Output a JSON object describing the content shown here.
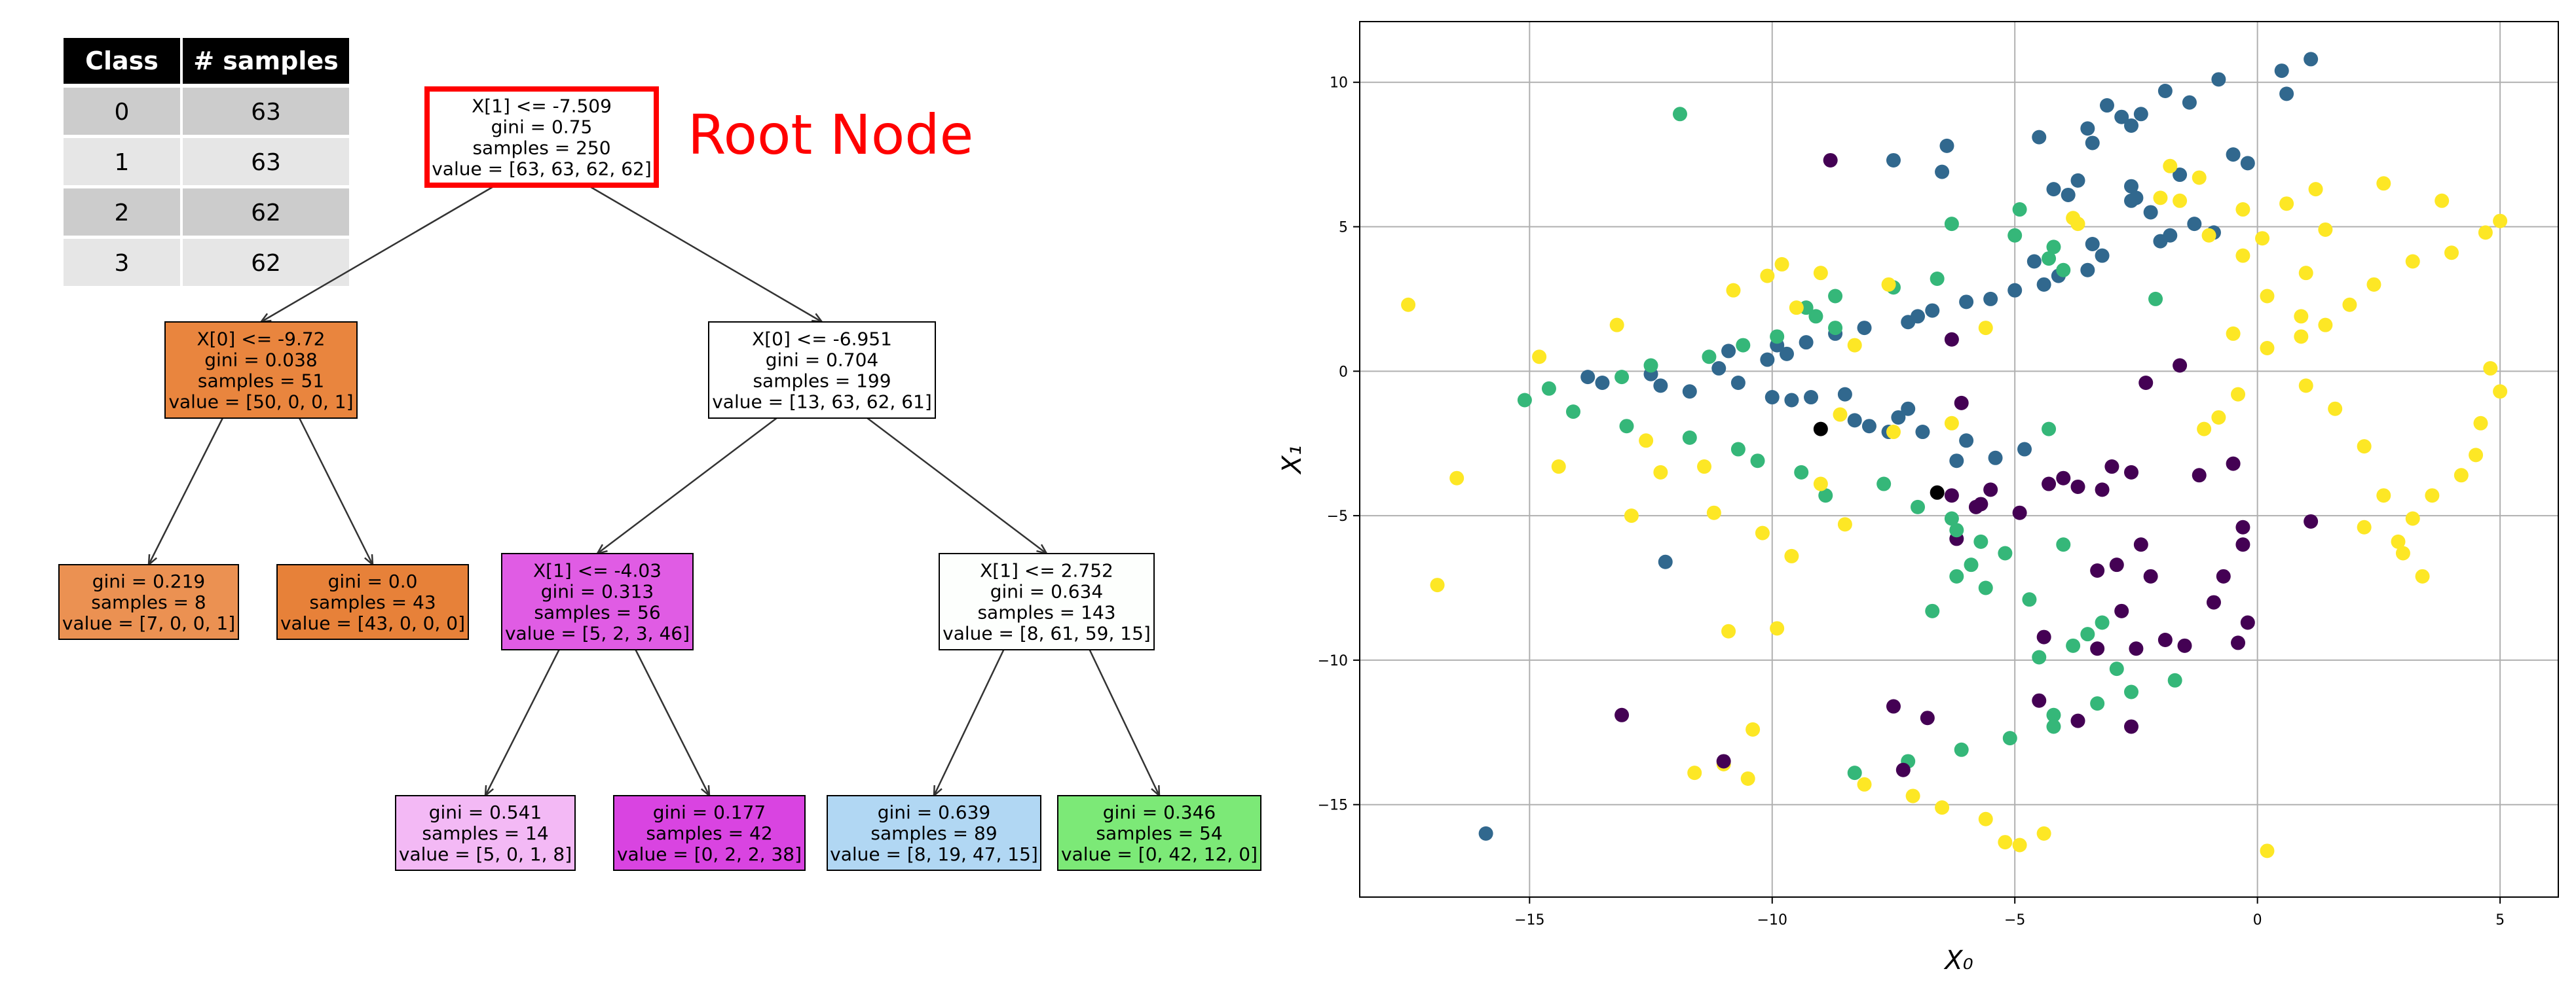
{
  "class_table": {
    "headers": [
      "Class",
      "# samples"
    ],
    "rows": [
      [
        "0",
        "63"
      ],
      [
        "1",
        "63"
      ],
      [
        "2",
        "62"
      ],
      [
        "3",
        "62"
      ]
    ]
  },
  "root_node_label": "Root Node",
  "tree": {
    "colors": {
      "root": "#ffffff",
      "n1": "#e9853e",
      "n3": "#eb9152",
      "n4": "#e78139",
      "n2": "#ffffff",
      "n5": "#e05ce4",
      "n8": "#f3b9f5",
      "n9": "#d944e1",
      "n6": "#fdfffd",
      "n10": "#b1d7f3",
      "n11": "#7ce977"
    },
    "highlight_color": "#ff0000",
    "nodes": [
      {
        "id": "root",
        "lines": [
          "X[1] <= -7.509",
          "gini = 0.75",
          "samples = 250",
          "value = [63, 63, 62, 62]"
        ]
      },
      {
        "id": "n1",
        "lines": [
          "X[0] <= -9.72",
          "gini = 0.038",
          "samples = 51",
          "value = [50, 0, 0, 1]"
        ]
      },
      {
        "id": "n2",
        "lines": [
          "X[0] <= -6.951",
          "gini = 0.704",
          "samples = 199",
          "value = [13, 63, 62, 61]"
        ]
      },
      {
        "id": "n3",
        "lines": [
          "gini = 0.219",
          "samples = 8",
          "value = [7, 0, 0, 1]"
        ]
      },
      {
        "id": "n4",
        "lines": [
          "gini = 0.0",
          "samples = 43",
          "value = [43, 0, 0, 0]"
        ]
      },
      {
        "id": "n5",
        "lines": [
          "X[1] <= -4.03",
          "gini = 0.313",
          "samples = 56",
          "value = [5, 2, 3, 46]"
        ]
      },
      {
        "id": "n6",
        "lines": [
          "X[1] <= 2.752",
          "gini = 0.634",
          "samples = 143",
          "value = [8, 61, 59, 15]"
        ]
      },
      {
        "id": "n8",
        "lines": [
          "gini = 0.541",
          "samples = 14",
          "value = [5, 0, 1, 8]"
        ]
      },
      {
        "id": "n9",
        "lines": [
          "gini = 0.177",
          "samples = 42",
          "value = [0, 2, 2, 38]"
        ]
      },
      {
        "id": "n10",
        "lines": [
          "gini = 0.639",
          "samples = 89",
          "value = [8, 19, 47, 15]"
        ]
      },
      {
        "id": "n11",
        "lines": [
          "gini = 0.346",
          "samples = 54",
          "value = [0, 42, 12, 0]"
        ]
      }
    ],
    "edges": [
      [
        "root",
        "n1"
      ],
      [
        "root",
        "n2"
      ],
      [
        "n1",
        "n3"
      ],
      [
        "n1",
        "n4"
      ],
      [
        "n2",
        "n5"
      ],
      [
        "n2",
        "n6"
      ],
      [
        "n5",
        "n8"
      ],
      [
        "n5",
        "n9"
      ],
      [
        "n6",
        "n10"
      ],
      [
        "n6",
        "n11"
      ]
    ]
  },
  "chart_data": {
    "type": "scatter",
    "xlabel": "X₀",
    "ylabel": "X₁",
    "xlim": [
      -18.5,
      6.2
    ],
    "ylim": [
      -18.2,
      12.1
    ],
    "xticks": [
      -15,
      -10,
      -5,
      0,
      5
    ],
    "yticks": [
      -15,
      -10,
      -5,
      0,
      5,
      10
    ],
    "grid": true,
    "class_colors": {
      "0": "#440154",
      "1": "#31688e",
      "2": "#35b779",
      "3": "#fde725"
    },
    "points": {
      "x": [
        -6.8,
        -7.5,
        -4.5,
        -3.7,
        -2.6,
        -4.4,
        -2.5,
        -3.3,
        -1.5,
        -1.9,
        -0.4,
        -0.9,
        -0.2,
        -2.8,
        -2.2,
        -0.7,
        -3.3,
        -2.9,
        -2.4,
        -0.3,
        -6.2,
        -0.3,
        1.1,
        -4.9,
        -5.8,
        -5.7,
        -6.3,
        -5.5,
        -3.2,
        -4.3,
        -4.0,
        -3.7,
        -3.0,
        -2.6,
        -1.2,
        -0.5,
        -6.2,
        -5.4,
        -4.8,
        -6.0,
        -6.9,
        -7.6,
        -8.0,
        -8.3,
        -7.4,
        -7.2,
        -9.6,
        -10.0,
        -9.2,
        -8.5,
        -11.7,
        -12.3,
        -10.7,
        -13.5,
        -13.8,
        -12.5,
        -11.1,
        -10.1,
        -9.7,
        -10.9,
        -9.9,
        -9.3,
        -8.7,
        -8.1,
        -7.2,
        -7.0,
        -6.7,
        -6.0,
        -5.5,
        -5.0,
        -4.4,
        -4.1,
        -3.5,
        -4.6,
        -3.2,
        -3.4,
        -2.0,
        -1.8,
        -0.9,
        -1.3,
        -2.2,
        -2.6,
        -3.9,
        -4.2,
        -3.7,
        -6.5,
        -7.5,
        -6.4,
        -4.5,
        -3.5,
        -2.8,
        -3.1,
        -1.9,
        -0.8,
        0.5,
        1.1,
        0.6,
        -1.4,
        -2.4,
        -2.6,
        -3.4,
        -0.5,
        -0.2,
        -1.6,
        -2.6,
        -2.5,
        -4.9,
        -6.3,
        -5.0,
        -4.2,
        -4.3,
        -4.0,
        -6.6,
        -7.5,
        -8.7,
        -9.3,
        -9.1,
        -8.7,
        -9.9,
        -10.6,
        -11.3,
        -12.5,
        -13.1,
        -14.6,
        -15.1,
        -14.1,
        -13.0,
        -11.7,
        -10.7,
        -10.3,
        -9.4,
        -7.7,
        -8.9,
        -7.0,
        -6.3,
        -6.2,
        -5.7,
        -5.2,
        -5.9,
        -6.2,
        -5.6,
        -4.7,
        -6.7,
        -3.2,
        -3.5,
        -3.8,
        -4.5,
        -2.9,
        -1.7,
        -2.6,
        -3.3,
        -4.2,
        -4.2,
        -5.1,
        -6.1,
        -7.2,
        -8.3,
        -8.1,
        -7.1,
        -6.5,
        -5.6,
        -4.4,
        -5.2,
        -12.6,
        -11.4,
        -10.2,
        -9.6,
        -10.9,
        -9.9,
        -10.4,
        -11.0,
        -11.6,
        -10.5,
        -11.2,
        -9.0,
        -8.5,
        -13.2,
        -14.8,
        -14.4,
        -17.5,
        -16.5,
        -12.3,
        -12.9,
        -8.3,
        -8.6,
        -6.3,
        -5.6,
        -9.0,
        -9.8,
        -10.8,
        -10.1,
        -9.5,
        -7.6,
        -3.7,
        -3.8,
        -2.0,
        -1.2,
        -1.8,
        -1.6,
        -1.0,
        -0.3,
        1.4,
        1.0,
        0.2,
        0.9,
        -0.5,
        -0.4,
        -0.8,
        -1.1,
        1.0,
        1.6,
        2.2,
        2.6,
        2.2,
        2.9,
        3.0,
        3.4,
        3.2,
        3.6,
        4.2,
        4.5,
        4.6,
        5.0,
        4.8,
        0.2,
        0.9,
        1.4,
        1.9,
        2.4,
        3.2,
        4.0,
        4.7,
        5.0,
        3.8,
        2.6,
        1.2,
        0.6,
        0.1,
        -0.3,
        -1.6,
        -2.3,
        -6.1,
        -7.3,
        -13.1,
        -11.0,
        -12.2,
        -15.9,
        -4.9,
        -8.8,
        -11.9,
        -16.9,
        0.2,
        -4.0,
        -2.1,
        -6.3,
        -4.3,
        -7.5,
        -6.6,
        -9.0
      ],
      "y": [
        -12.0,
        -11.6,
        -11.4,
        -12.1,
        -12.3,
        -9.2,
        -9.6,
        -9.6,
        -9.5,
        -9.3,
        -9.4,
        -8.0,
        -8.7,
        -8.3,
        -7.1,
        -7.1,
        -6.9,
        -6.7,
        -6.0,
        -6.0,
        -5.8,
        -5.4,
        -5.2,
        -4.9,
        -4.7,
        -4.6,
        -4.3,
        -4.1,
        -4.1,
        -3.9,
        -3.7,
        -4.0,
        -3.3,
        -3.5,
        -3.6,
        -3.2,
        -3.1,
        -3.0,
        -2.7,
        -2.4,
        -2.1,
        -2.1,
        -1.9,
        -1.7,
        -1.6,
        -1.3,
        -1.0,
        -0.9,
        -0.9,
        -0.8,
        -0.7,
        -0.5,
        -0.4,
        -0.4,
        -0.2,
        -0.1,
        0.1,
        0.4,
        0.6,
        0.7,
        0.9,
        1.0,
        1.3,
        1.5,
        1.7,
        1.9,
        2.1,
        2.4,
        2.5,
        2.8,
        3.0,
        3.3,
        3.5,
        3.8,
        4.0,
        4.4,
        4.5,
        4.7,
        4.8,
        5.1,
        5.5,
        5.9,
        6.1,
        6.3,
        6.6,
        6.9,
        7.3,
        7.8,
        8.1,
        8.4,
        8.8,
        9.2,
        9.7,
        10.1,
        10.4,
        10.8,
        9.6,
        9.3,
        8.9,
        8.5,
        7.9,
        7.5,
        7.2,
        6.8,
        6.4,
        6.0,
        5.6,
        5.1,
        4.7,
        4.3,
        3.9,
        3.5,
        3.2,
        2.9,
        2.6,
        2.2,
        1.9,
        1.5,
        1.2,
        0.9,
        0.5,
        0.2,
        -0.2,
        -0.6,
        -1.0,
        -1.4,
        -1.9,
        -2.3,
        -2.7,
        -3.1,
        -3.5,
        -3.9,
        -4.3,
        -4.7,
        -5.1,
        -5.5,
        -5.9,
        -6.3,
        -6.7,
        -7.1,
        -7.5,
        -7.9,
        -8.3,
        -8.7,
        -9.1,
        -9.5,
        -9.9,
        -10.3,
        -10.7,
        -11.1,
        -11.5,
        -11.9,
        -12.3,
        -12.7,
        -13.1,
        -13.5,
        -13.9,
        -14.3,
        -14.7,
        -15.1,
        -15.5,
        -16.0,
        -16.3,
        -2.4,
        -3.3,
        -5.6,
        -6.4,
        -9.0,
        -8.9,
        -12.4,
        -13.6,
        -13.9,
        -14.1,
        -4.9,
        -3.9,
        -5.3,
        1.6,
        0.5,
        -3.3,
        2.3,
        -3.7,
        -3.5,
        -5.0,
        0.9,
        -1.5,
        -1.8,
        1.5,
        3.4,
        3.7,
        2.8,
        3.3,
        2.2,
        3.0,
        5.1,
        5.3,
        6.0,
        6.7,
        7.1,
        5.9,
        4.7,
        5.6,
        4.9,
        3.4,
        2.6,
        1.9,
        1.3,
        -0.8,
        -1.6,
        -2.0,
        -0.5,
        -1.3,
        -2.6,
        -4.3,
        -5.4,
        -5.9,
        -6.3,
        -7.1,
        -5.1,
        -4.3,
        -3.6,
        -2.9,
        -1.8,
        -0.7,
        0.1,
        0.8,
        1.2,
        1.6,
        2.3,
        3.0,
        3.8,
        4.1,
        4.8,
        5.2,
        5.9,
        6.5,
        6.3,
        5.8,
        4.6,
        4.0,
        0.2,
        -0.4,
        -1.1,
        -13.8,
        -11.9,
        -13.5,
        -6.6,
        -16.0,
        -16.4,
        7.3,
        8.9,
        -7.4,
        -16.6,
        -6.0,
        2.5,
        1.1,
        -2.0,
        -2.1,
        -4.2,
        -2.0
      ],
      "cls": [
        0,
        0,
        0,
        0,
        0,
        0,
        0,
        0,
        0,
        0,
        0,
        0,
        0,
        0,
        0,
        0,
        0,
        0,
        0,
        0,
        0,
        0,
        0,
        0,
        0,
        0,
        0,
        0,
        0,
        0,
        0,
        0,
        0,
        0,
        0,
        0,
        1,
        1,
        1,
        1,
        1,
        1,
        1,
        1,
        1,
        1,
        1,
        1,
        1,
        1,
        1,
        1,
        1,
        1,
        1,
        1,
        1,
        1,
        1,
        1,
        1,
        1,
        1,
        1,
        1,
        1,
        1,
        1,
        1,
        1,
        1,
        1,
        1,
        1,
        1,
        1,
        1,
        1,
        1,
        1,
        1,
        1,
        1,
        1,
        1,
        1,
        1,
        1,
        1,
        1,
        1,
        1,
        1,
        1,
        1,
        1,
        1,
        1,
        1,
        1,
        1,
        1,
        1,
        1,
        1,
        1,
        2,
        2,
        2,
        2,
        2,
        2,
        2,
        2,
        2,
        2,
        2,
        2,
        2,
        2,
        2,
        2,
        2,
        2,
        2,
        2,
        2,
        2,
        2,
        2,
        2,
        2,
        2,
        2,
        2,
        2,
        2,
        2,
        2,
        2,
        2,
        2,
        2,
        2,
        2,
        2,
        2,
        2,
        2,
        2,
        2,
        2,
        2,
        2,
        2,
        2,
        2,
        3,
        3,
        3,
        3,
        3,
        3,
        3,
        3,
        3,
        3,
        3,
        3,
        3,
        3,
        3,
        3,
        3,
        3,
        3,
        3,
        3,
        3,
        3,
        3,
        3,
        3,
        3,
        3,
        3,
        3,
        3,
        3,
        3,
        3,
        3,
        3,
        3,
        3,
        3,
        3,
        3,
        3,
        3,
        3,
        3,
        3,
        3,
        3,
        3,
        3,
        3,
        3,
        3,
        3,
        3,
        3,
        3,
        3,
        3,
        3,
        3,
        3,
        3,
        3,
        3,
        3,
        3,
        3,
        3,
        3,
        3,
        3,
        3,
        3,
        3,
        3,
        3,
        3,
        3,
        3,
        3,
        3,
        0,
        0,
        0,
        0,
        0,
        0,
        1,
        1,
        3,
        0,
        2,
        3,
        3,
        2,
        2,
        0,
        2,
        3
      ]
    }
  }
}
